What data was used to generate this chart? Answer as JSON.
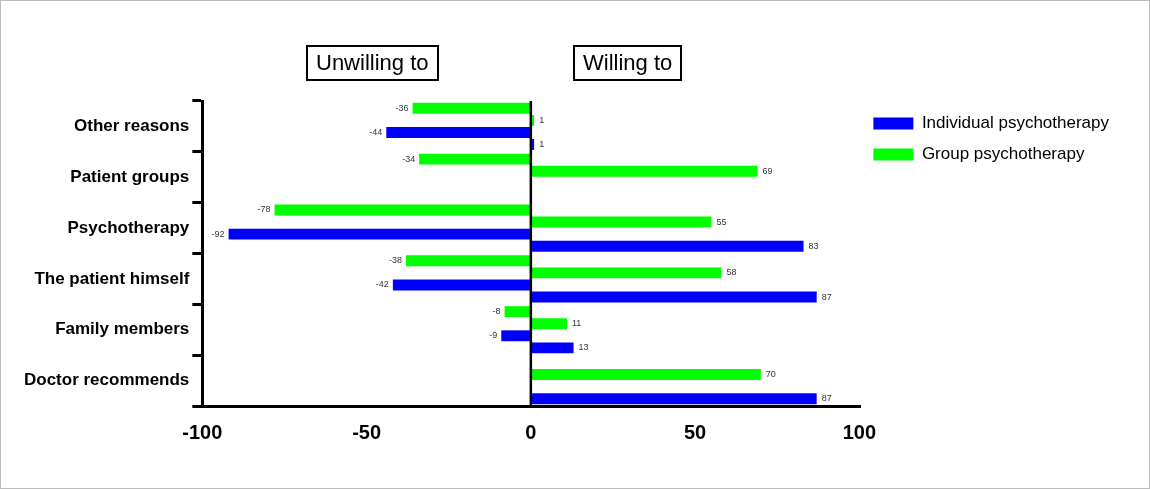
{
  "chart_data": {
    "type": "bar",
    "orientation": "horizontal",
    "categories": [
      "Other reasons",
      "Patient groups",
      "Psychotherapy",
      "The patient himself",
      "Family members",
      "Doctor recommends"
    ],
    "series": [
      {
        "color": "#00ff00",
        "values": [
          -36,
          -34,
          -78,
          -38,
          -8,
          null
        ]
      },
      {
        "name": "Group psychotherapy",
        "color": "#00ff00",
        "values": [
          1,
          69,
          55,
          58,
          11,
          70
        ]
      },
      {
        "color": "#0000ff",
        "values": [
          -44,
          null,
          -92,
          -42,
          -9,
          null
        ]
      },
      {
        "name": "Individual psychotherapy",
        "color": "#0000ff",
        "values": [
          1,
          null,
          83,
          87,
          13,
          87
        ]
      }
    ],
    "xlim": [
      -100,
      100
    ],
    "xticks": [
      -100,
      -50,
      0,
      50,
      100
    ],
    "grid": false,
    "ref_lines": [
      {
        "axis": "x",
        "value": 0,
        "color": "#000000"
      }
    ],
    "legend": "top right",
    "data_labels": true,
    "annotations": [
      "Unwilling to",
      "Willing to"
    ]
  }
}
